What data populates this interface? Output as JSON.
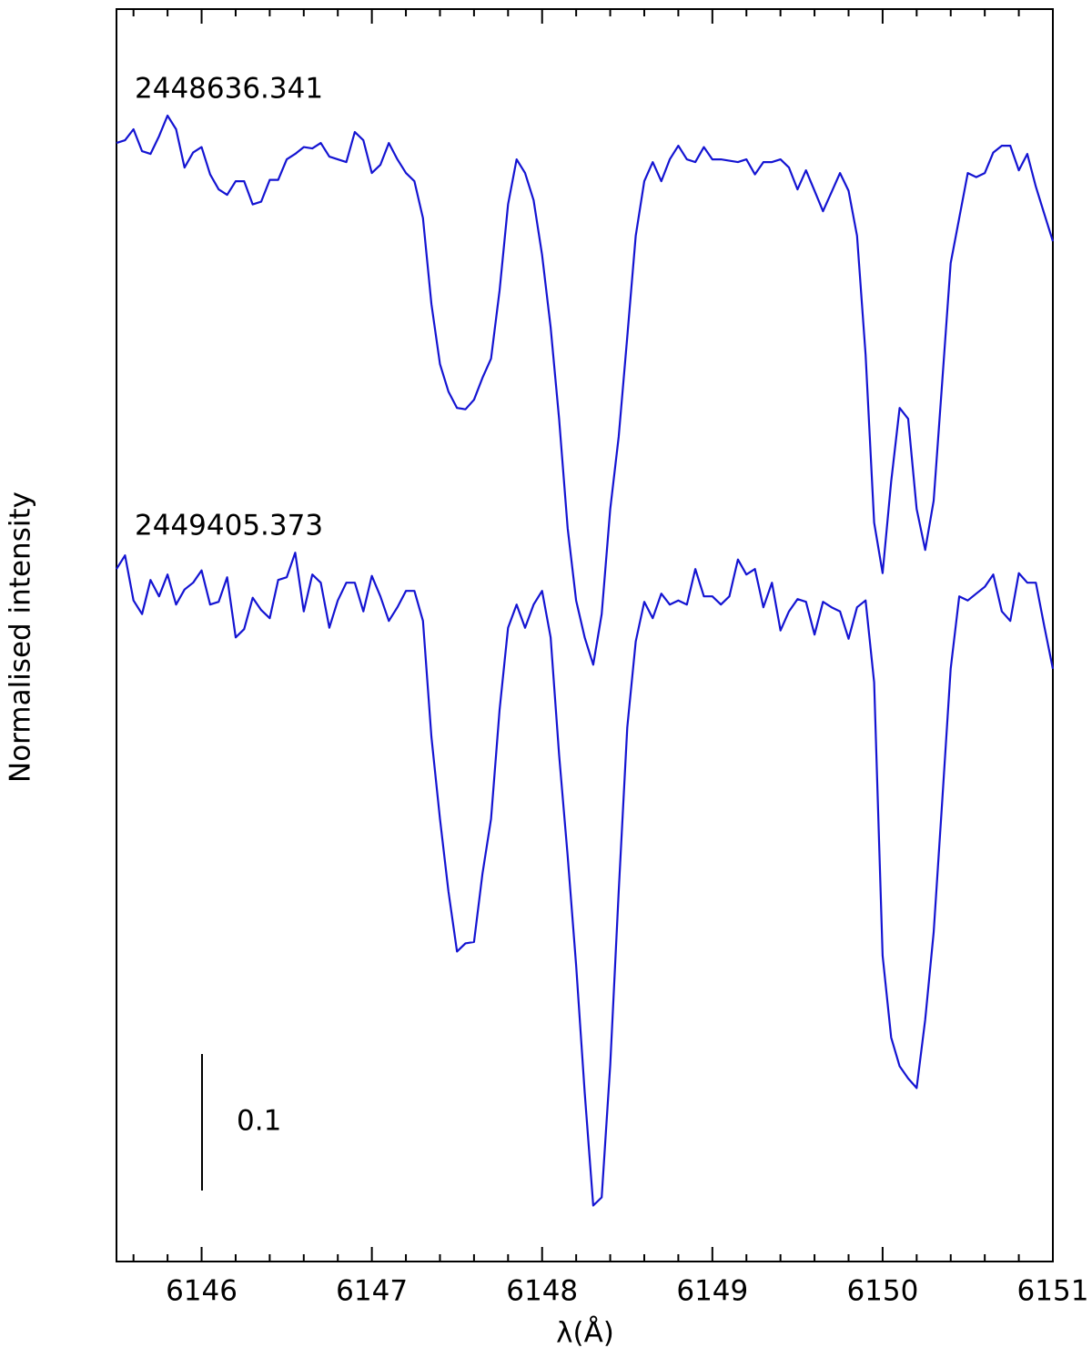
{
  "chart_data": {
    "type": "line",
    "xlabel": "λ(Å)",
    "ylabel": "Normalised intensity",
    "xlim": [
      6145.5,
      6151
    ],
    "ylim": [
      0.5,
      1.417
    ],
    "xticks": [
      6146,
      6147,
      6148,
      6149,
      6150,
      6151
    ],
    "xminorticks": [
      6145.6,
      6145.8,
      6146.2,
      6146.4,
      6146.6,
      6146.8,
      6147.2,
      6147.4,
      6147.6,
      6147.8,
      6148.2,
      6148.4,
      6148.6,
      6148.8,
      6149.2,
      6149.4,
      6149.6,
      6149.8,
      6150.2,
      6150.4,
      6150.6,
      6150.8
    ],
    "scale_bar": {
      "value": 0.1
    },
    "x": [
      6145.5,
      6145.55,
      6145.6,
      6145.65,
      6145.7,
      6145.75,
      6145.8,
      6145.85,
      6145.9,
      6145.95,
      6146,
      6146.05,
      6146.1,
      6146.15,
      6146.2,
      6146.25,
      6146.3,
      6146.35,
      6146.4,
      6146.45,
      6146.5,
      6146.55,
      6146.6,
      6146.65,
      6146.7,
      6146.75,
      6146.8,
      6146.85,
      6146.9,
      6146.95,
      6147,
      6147.05,
      6147.1,
      6147.15,
      6147.2,
      6147.25,
      6147.3,
      6147.35,
      6147.4,
      6147.45,
      6147.5,
      6147.55,
      6147.6,
      6147.65,
      6147.7,
      6147.75,
      6147.8,
      6147.85,
      6147.9,
      6147.95,
      6148,
      6148.05,
      6148.1,
      6148.15,
      6148.2,
      6148.25,
      6148.3,
      6148.35,
      6148.4,
      6148.45,
      6148.5,
      6148.55,
      6148.6,
      6148.65,
      6148.7,
      6148.75,
      6148.8,
      6148.85,
      6148.9,
      6148.95,
      6149,
      6149.05,
      6149.1,
      6149.15,
      6149.2,
      6149.25,
      6149.3,
      6149.35,
      6149.4,
      6149.45,
      6149.5,
      6149.55,
      6149.6,
      6149.65,
      6149.7,
      6149.75,
      6149.8,
      6149.85,
      6149.9,
      6149.95,
      6150,
      6150.05,
      6150.1,
      6150.15,
      6150.2,
      6150.25,
      6150.3,
      6150.35,
      6150.4,
      6150.45,
      6150.5,
      6150.55,
      6150.6,
      6150.65,
      6150.7,
      6150.75,
      6150.8,
      6150.85,
      6150.9,
      6150.95,
      6151
    ],
    "series": [
      {
        "name": "2448636.341",
        "color": "#1414d2",
        "values": [
          1.319,
          1.321,
          1.329,
          1.313,
          1.311,
          1.324,
          1.339,
          1.329,
          1.301,
          1.312,
          1.316,
          1.296,
          1.285,
          1.281,
          1.291,
          1.291,
          1.274,
          1.276,
          1.292,
          1.292,
          1.307,
          1.311,
          1.316,
          1.315,
          1.319,
          1.309,
          1.307,
          1.305,
          1.327,
          1.321,
          1.297,
          1.303,
          1.319,
          1.307,
          1.297,
          1.291,
          1.264,
          1.201,
          1.157,
          1.137,
          1.125,
          1.124,
          1.131,
          1.147,
          1.161,
          1.211,
          1.274,
          1.307,
          1.297,
          1.277,
          1.237,
          1.184,
          1.117,
          1.037,
          0.984,
          0.957,
          0.937,
          0.974,
          1.051,
          1.104,
          1.177,
          1.251,
          1.291,
          1.305,
          1.291,
          1.307,
          1.317,
          1.307,
          1.305,
          1.316,
          1.307,
          1.307,
          1.306,
          1.305,
          1.307,
          1.296,
          1.305,
          1.305,
          1.307,
          1.301,
          1.285,
          1.299,
          1.284,
          1.269,
          1.283,
          1.297,
          1.284,
          1.251,
          1.164,
          1.041,
          1.004,
          1.071,
          1.125,
          1.117,
          1.051,
          1.021,
          1.057,
          1.144,
          1.231,
          1.264,
          1.297,
          1.294,
          1.297,
          1.312,
          1.317,
          1.317,
          1.299,
          1.311,
          1.287,
          1.267,
          1.247
        ]
      },
      {
        "name": "2449405.373",
        "color": "#1414d2",
        "values": [
          1.007,
          1.017,
          0.984,
          0.974,
          0.999,
          0.987,
          1.003,
          0.981,
          0.992,
          0.997,
          1.006,
          0.981,
          0.983,
          1.001,
          0.957,
          0.963,
          0.986,
          0.977,
          0.971,
          0.999,
          1.001,
          1.019,
          0.976,
          1.003,
          0.997,
          0.964,
          0.984,
          0.997,
          0.997,
          0.976,
          1.002,
          0.987,
          0.969,
          0.979,
          0.991,
          0.991,
          0.969,
          0.884,
          0.824,
          0.771,
          0.727,
          0.733,
          0.734,
          0.784,
          0.824,
          0.904,
          0.964,
          0.981,
          0.964,
          0.981,
          0.991,
          0.957,
          0.871,
          0.797,
          0.717,
          0.624,
          0.541,
          0.547,
          0.644,
          0.771,
          0.891,
          0.954,
          0.983,
          0.971,
          0.989,
          0.981,
          0.984,
          0.981,
          1.007,
          0.987,
          0.987,
          0.981,
          0.987,
          1.014,
          1.003,
          1.007,
          0.979,
          0.997,
          0.962,
          0.976,
          0.985,
          0.983,
          0.959,
          0.983,
          0.979,
          0.976,
          0.956,
          0.979,
          0.984,
          0.924,
          0.724,
          0.664,
          0.643,
          0.634,
          0.627,
          0.677,
          0.741,
          0.837,
          0.934,
          0.987,
          0.984,
          0.989,
          0.994,
          1.003,
          0.976,
          0.969,
          1.004,
          0.997,
          0.997,
          0.965,
          0.934
        ]
      }
    ]
  }
}
